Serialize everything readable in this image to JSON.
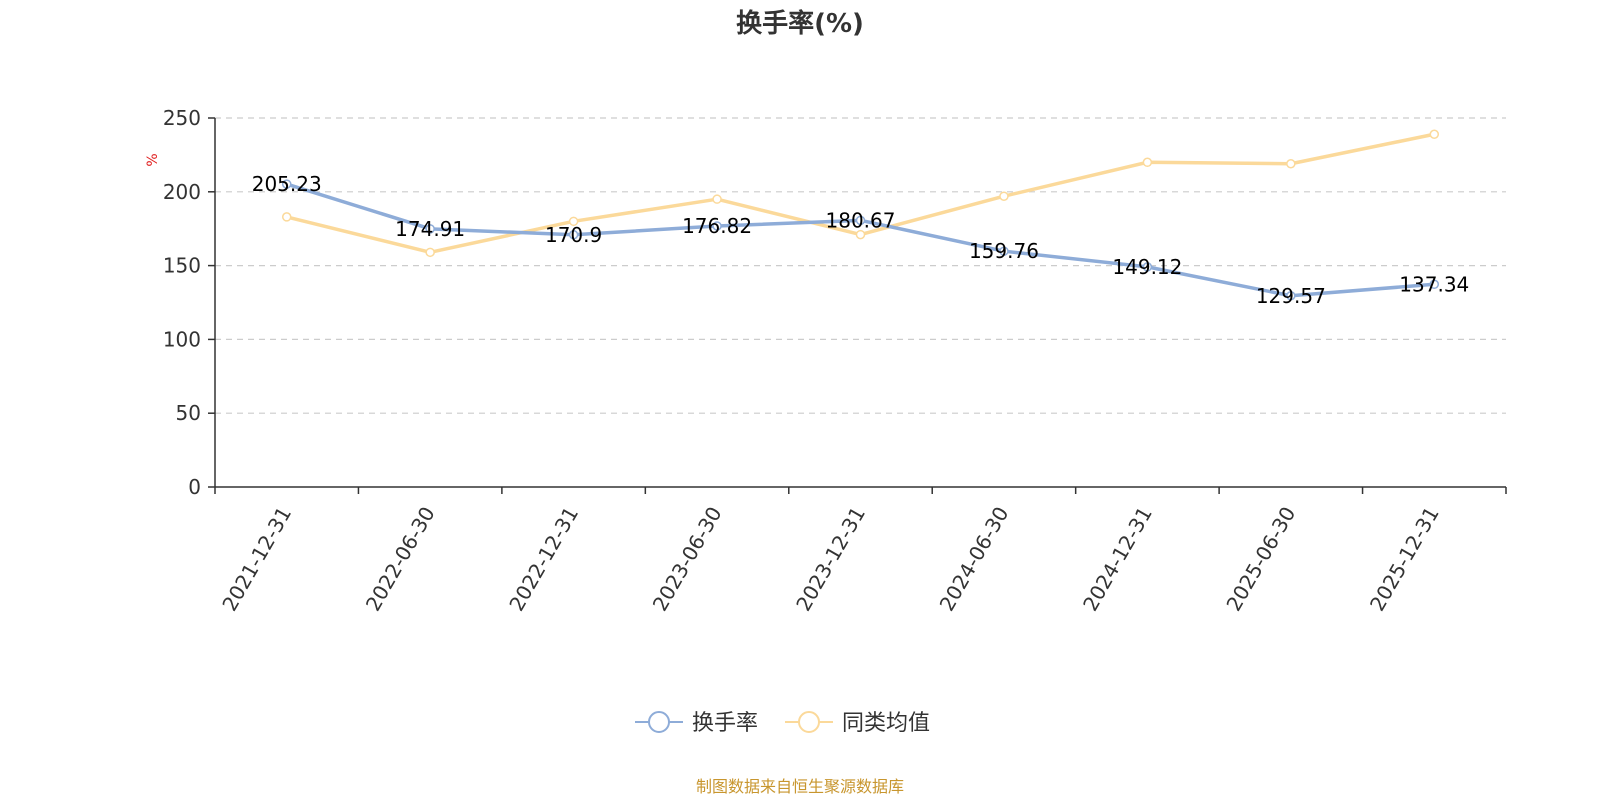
{
  "chart_data": {
    "type": "line",
    "title": "换手率(%)",
    "ylabel": "%",
    "ylim": [
      0,
      250
    ],
    "yticks": [
      0,
      50,
      100,
      150,
      200,
      250
    ],
    "categories": [
      "2021-12-31",
      "2022-06-30",
      "2022-12-31",
      "2023-06-30",
      "2023-12-31",
      "2024-06-30",
      "2024-12-31",
      "2025-06-30",
      "2025-12-31"
    ],
    "series": [
      {
        "name": "换手率",
        "color": "#8eacd8",
        "values": [
          205.23,
          174.91,
          170.9,
          176.82,
          180.67,
          159.76,
          149.12,
          129.57,
          137.34
        ],
        "labels": [
          "205.23",
          "174.91",
          "170.9",
          "176.82",
          "180.67",
          "159.76",
          "149.12",
          "129.57",
          "137.34"
        ]
      },
      {
        "name": "同类均值",
        "color": "#fbd99a",
        "values": [
          183,
          159,
          180,
          195,
          171,
          197,
          220,
          219,
          239
        ]
      }
    ],
    "grid": "horizontal-dashed",
    "legend": "bottom-center",
    "source": "制图数据来自恒生聚源数据库"
  }
}
